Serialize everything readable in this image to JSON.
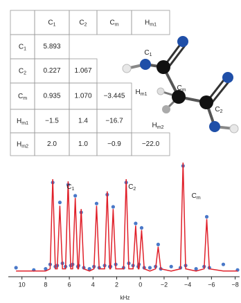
{
  "table": {
    "header": [
      {
        "main": "C",
        "sub": "1"
      },
      {
        "main": "C",
        "sub": "2"
      },
      {
        "main": "C",
        "sub": "m"
      },
      {
        "main": "H",
        "sub": "m1"
      }
    ],
    "rows": [
      {
        "label": {
          "main": "C",
          "sub": "1"
        },
        "cells": [
          "5.893"
        ]
      },
      {
        "label": {
          "main": "C",
          "sub": "2"
        },
        "cells": [
          "0.227",
          "1.067"
        ]
      },
      {
        "label": {
          "main": "C",
          "sub": "m"
        },
        "cells": [
          "0.935",
          "1.070",
          "−3.445"
        ]
      },
      {
        "label": {
          "main": "H",
          "sub": "m1"
        },
        "cells": [
          "−1.5",
          "1.4",
          "−16.7"
        ]
      },
      {
        "label": {
          "main": "H",
          "sub": "m2"
        },
        "cells": [
          "2.0",
          "1.0",
          "−0.9",
          "−22.0"
        ]
      }
    ]
  },
  "molecule": {
    "labels": [
      {
        "main": "C",
        "sub": "1"
      },
      {
        "main": "C",
        "sub": "m"
      },
      {
        "main": "H",
        "sub": "m1"
      },
      {
        "main": "C",
        "sub": "2"
      },
      {
        "main": "H",
        "sub": "m2"
      }
    ]
  },
  "chart_data": {
    "type": "spectrum",
    "xlabel": "kHz",
    "x": [
      10.5,
      9.0,
      8.0,
      7.62,
      7.4,
      7.18,
      7.02,
      6.8,
      6.58,
      6.32,
      6.1,
      5.88,
      5.72,
      5.5,
      5.28,
      5.22,
      5.0,
      4.78,
      4.3,
      3.92,
      3.7,
      3.48,
      3.02,
      2.8,
      2.58,
      2.52,
      2.3,
      2.08,
      1.42,
      1.2,
      0.98,
      0.62,
      0.4,
      0.18,
      0.12,
      -0.1,
      -0.32,
      -0.8,
      -1.28,
      -1.5,
      -1.72,
      -2.6,
      -3.38,
      -3.6,
      -3.82,
      -4.7,
      -5.38,
      -5.6,
      -5.82,
      -7.0,
      -8.2
    ],
    "series": [
      {
        "type": "scatter",
        "color": "#4a78c8",
        "values": [
          5,
          3,
          4,
          8,
          82,
          6,
          7,
          64,
          9,
          6,
          80,
          7,
          8,
          70,
          6,
          7,
          55,
          5,
          4,
          6,
          63,
          5,
          7,
          71,
          6,
          6,
          60,
          8,
          5,
          82,
          9,
          7,
          45,
          6,
          8,
          41,
          5,
          5,
          6,
          26,
          4,
          6,
          5,
          97,
          7,
          4,
          6,
          51,
          5,
          8,
          3
        ]
      },
      {
        "type": "line",
        "color": "#e0202a",
        "values": [
          2,
          2,
          2,
          4,
          85,
          4,
          4,
          61,
          4,
          4,
          83,
          4,
          4,
          68,
          4,
          4,
          58,
          4,
          2,
          4,
          61,
          4,
          4,
          74,
          4,
          4,
          58,
          4,
          4,
          85,
          4,
          4,
          43,
          4,
          4,
          39,
          4,
          2,
          4,
          24,
          4,
          2,
          4,
          100,
          4,
          2,
          4,
          49,
          4,
          2,
          2
        ]
      }
    ],
    "annotations": [
      {
        "main": "C",
        "sub": "1",
        "x": 5.9,
        "y": 78
      },
      {
        "main": "C",
        "sub": "2",
        "x": 0.7,
        "y": 78
      },
      {
        "main": "C",
        "sub": "m",
        "x": -4.7,
        "y": 70
      }
    ],
    "xlim": [
      10.8,
      -8.2
    ],
    "ylim": [
      0,
      105
    ],
    "xticks": [
      10,
      8,
      6,
      4,
      2,
      0,
      {
        "value": -2,
        "label": "−2"
      },
      {
        "value": -4,
        "label": "−4"
      },
      {
        "value": -6,
        "label": "−6"
      },
      {
        "value": -8,
        "label": "−8"
      }
    ]
  }
}
